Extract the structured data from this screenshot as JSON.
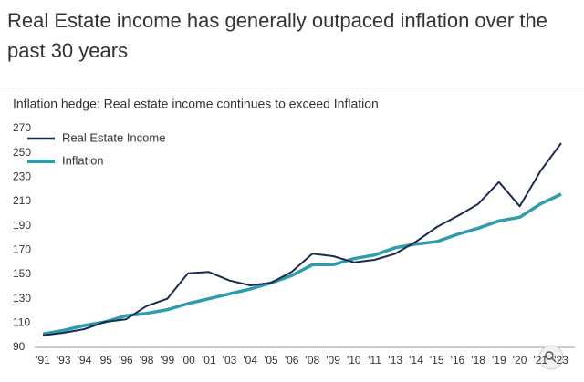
{
  "chart_data": {
    "type": "line",
    "title": "Real Estate income has generally outpaced inflation over the past 30 years",
    "subtitle": "Inflation hedge: Real estate income continues to exceed Inflation",
    "categories": [
      "'91",
      "'93",
      "'94",
      "'95",
      "'96",
      "'98",
      "'99",
      "'00",
      "'01",
      "'03",
      "'04",
      "'05",
      "'06",
      "'08",
      "'09",
      "'10",
      "'11",
      "'13",
      "'14",
      "'15",
      "'16",
      "'18",
      "'19",
      "'20",
      "'21",
      "'23"
    ],
    "series": [
      {
        "name": "Real Estate Income",
        "color": "#1b2a4e",
        "values": [
          100,
          102,
          105,
          111,
          113,
          124,
          130,
          151,
          152,
          145,
          141,
          143,
          152,
          167,
          165,
          160,
          162,
          167,
          177,
          189,
          198,
          208,
          226,
          206,
          235,
          258
        ]
      },
      {
        "name": "Inflation",
        "color": "#2e9cab",
        "values": [
          101,
          104,
          108,
          111,
          116,
          118,
          121,
          126,
          130,
          134,
          138,
          143,
          149,
          158,
          158,
          163,
          166,
          172,
          175,
          177,
          183,
          188,
          194,
          197,
          208,
          216
        ]
      }
    ],
    "ylim": [
      90,
      270
    ],
    "yticks": [
      90,
      110,
      130,
      150,
      170,
      190,
      210,
      230,
      250,
      270
    ]
  }
}
